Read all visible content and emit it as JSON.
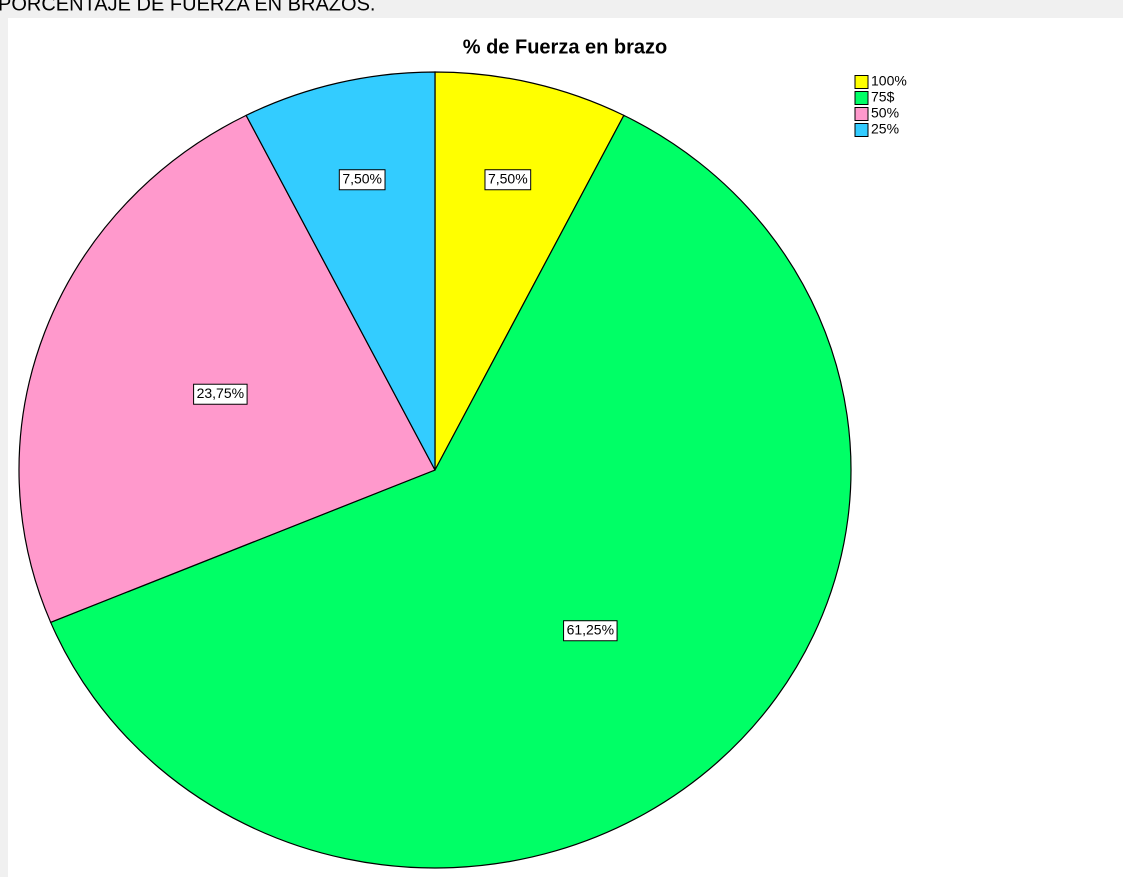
{
  "page_title": "PORCENTAJE DE FUERZA EN BRAZOS.",
  "chart_data": {
    "type": "pie",
    "title": "% de Fuerza en brazo",
    "categories": [
      "100%",
      "75$",
      "50%",
      "25%"
    ],
    "values": [
      7.5,
      61.25,
      23.75,
      7.5
    ],
    "value_labels": [
      "7,50%",
      "61,25%",
      "23,75%",
      "7,50%"
    ],
    "colors": [
      "#ffff00",
      "#00ff66",
      "#ff99cc",
      "#33ccff"
    ],
    "legend": "top-right"
  }
}
